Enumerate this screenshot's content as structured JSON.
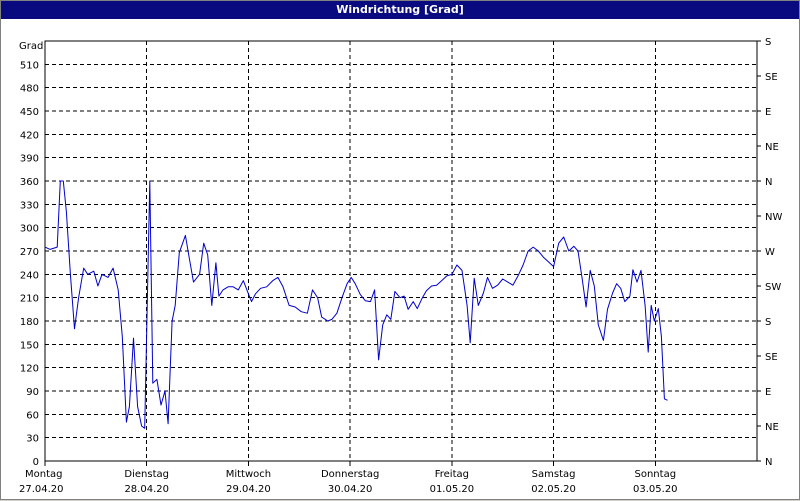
{
  "window": {
    "title": "Windrichtung [Grad]"
  },
  "chart_data": {
    "type": "line",
    "title": "Windrichtung [Grad]",
    "ylabel": "Grad",
    "ylim": [
      0,
      540
    ],
    "y_ticks": [
      0,
      30,
      60,
      90,
      120,
      150,
      180,
      210,
      240,
      270,
      300,
      330,
      360,
      390,
      420,
      450,
      480,
      510
    ],
    "right_axis_labels": [
      "N",
      "NE",
      "E",
      "SE",
      "S",
      "SW",
      "W",
      "NW",
      "N",
      "NE",
      "E",
      "SE",
      "S"
    ],
    "x_days": [
      {
        "day": "Montag",
        "date": "27.04.20"
      },
      {
        "day": "Dienstag",
        "date": "28.04.20"
      },
      {
        "day": "Mittwoch",
        "date": "29.04.20"
      },
      {
        "day": "Donnerstag",
        "date": "30.04.20"
      },
      {
        "day": "Freitag",
        "date": "01.05.20"
      },
      {
        "day": "Samstag",
        "date": "02.05.20"
      },
      {
        "day": "Sonntag",
        "date": "03.05.20"
      }
    ],
    "x_unit": "days since Montag 27.04.20 00:00",
    "grid": true,
    "series": [
      {
        "name": "Windrichtung",
        "color": "#0000cc",
        "points": [
          [
            0.0,
            275
          ],
          [
            0.05,
            272
          ],
          [
            0.12,
            275
          ],
          [
            0.15,
            360
          ],
          [
            0.18,
            360
          ],
          [
            0.21,
            320
          ],
          [
            0.25,
            240
          ],
          [
            0.29,
            170
          ],
          [
            0.33,
            210
          ],
          [
            0.38,
            248
          ],
          [
            0.42,
            240
          ],
          [
            0.48,
            244
          ],
          [
            0.52,
            225
          ],
          [
            0.56,
            240
          ],
          [
            0.62,
            236
          ],
          [
            0.67,
            248
          ],
          [
            0.72,
            220
          ],
          [
            0.76,
            160
          ],
          [
            0.8,
            50
          ],
          [
            0.83,
            70
          ],
          [
            0.87,
            158
          ],
          [
            0.91,
            70
          ],
          [
            0.95,
            45
          ],
          [
            0.98,
            42
          ],
          [
            1.03,
            360
          ],
          [
            1.06,
            100
          ],
          [
            1.1,
            105
          ],
          [
            1.14,
            72
          ],
          [
            1.18,
            90
          ],
          [
            1.21,
            48
          ],
          [
            1.25,
            180
          ],
          [
            1.28,
            200
          ],
          [
            1.32,
            268
          ],
          [
            1.38,
            290
          ],
          [
            1.42,
            260
          ],
          [
            1.46,
            230
          ],
          [
            1.52,
            240
          ],
          [
            1.56,
            280
          ],
          [
            1.6,
            265
          ],
          [
            1.64,
            200
          ],
          [
            1.68,
            255
          ],
          [
            1.71,
            212
          ],
          [
            1.75,
            220
          ],
          [
            1.8,
            224
          ],
          [
            1.85,
            224
          ],
          [
            1.9,
            220
          ],
          [
            1.95,
            232
          ],
          [
            2.0,
            215
          ],
          [
            2.03,
            205
          ],
          [
            2.07,
            215
          ],
          [
            2.12,
            222
          ],
          [
            2.18,
            224
          ],
          [
            2.24,
            232
          ],
          [
            2.29,
            236
          ],
          [
            2.34,
            224
          ],
          [
            2.4,
            200
          ],
          [
            2.46,
            198
          ],
          [
            2.52,
            192
          ],
          [
            2.58,
            190
          ],
          [
            2.63,
            220
          ],
          [
            2.68,
            210
          ],
          [
            2.72,
            185
          ],
          [
            2.78,
            180
          ],
          [
            2.82,
            182
          ],
          [
            2.87,
            190
          ],
          [
            2.92,
            210
          ],
          [
            2.97,
            228
          ],
          [
            3.01,
            236
          ],
          [
            3.05,
            228
          ],
          [
            3.1,
            214
          ],
          [
            3.15,
            206
          ],
          [
            3.2,
            205
          ],
          [
            3.24,
            220
          ],
          [
            3.28,
            130
          ],
          [
            3.32,
            175
          ],
          [
            3.36,
            188
          ],
          [
            3.4,
            182
          ],
          [
            3.44,
            218
          ],
          [
            3.49,
            210
          ],
          [
            3.53,
            212
          ],
          [
            3.57,
            195
          ],
          [
            3.62,
            205
          ],
          [
            3.66,
            196
          ],
          [
            3.71,
            210
          ],
          [
            3.75,
            219
          ],
          [
            3.8,
            225
          ],
          [
            3.85,
            226
          ],
          [
            3.9,
            232
          ],
          [
            3.95,
            238
          ],
          [
            4.0,
            240
          ],
          [
            4.05,
            252
          ],
          [
            4.1,
            245
          ],
          [
            4.15,
            200
          ],
          [
            4.18,
            152
          ],
          [
            4.22,
            235
          ],
          [
            4.26,
            200
          ],
          [
            4.31,
            216
          ],
          [
            4.35,
            236
          ],
          [
            4.4,
            222
          ],
          [
            4.45,
            226
          ],
          [
            4.5,
            234
          ],
          [
            4.55,
            230
          ],
          [
            4.6,
            226
          ],
          [
            4.65,
            238
          ],
          [
            4.7,
            252
          ],
          [
            4.75,
            270
          ],
          [
            4.8,
            275
          ],
          [
            4.85,
            270
          ],
          [
            4.9,
            262
          ],
          [
            4.95,
            256
          ],
          [
            5.0,
            250
          ],
          [
            5.05,
            280
          ],
          [
            5.1,
            288
          ],
          [
            5.15,
            270
          ],
          [
            5.2,
            276
          ],
          [
            5.24,
            270
          ],
          [
            5.28,
            235
          ],
          [
            5.32,
            198
          ],
          [
            5.36,
            245
          ],
          [
            5.4,
            225
          ],
          [
            5.44,
            175
          ],
          [
            5.49,
            155
          ],
          [
            5.53,
            195
          ],
          [
            5.58,
            216
          ],
          [
            5.62,
            228
          ],
          [
            5.66,
            222
          ],
          [
            5.7,
            205
          ],
          [
            5.75,
            212
          ],
          [
            5.78,
            246
          ],
          [
            5.82,
            230
          ],
          [
            5.86,
            245
          ],
          [
            5.9,
            200
          ],
          [
            5.93,
            140
          ],
          [
            5.96,
            200
          ],
          [
            5.99,
            180
          ],
          [
            6.03,
            196
          ],
          [
            6.06,
            160
          ],
          [
            6.09,
            80
          ],
          [
            6.12,
            78
          ]
        ]
      }
    ]
  }
}
